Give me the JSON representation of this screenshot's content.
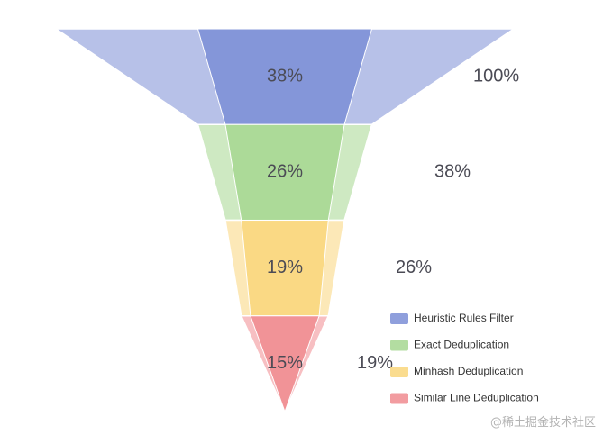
{
  "chart_data": {
    "type": "funnel",
    "categories": [
      "Heuristic Rules Filter",
      "Exact Deduplication",
      "Minhash Deduplication",
      "Similar Line Deduplication"
    ],
    "series": [
      {
        "values": [
          100,
          38,
          26,
          19
        ]
      },
      {
        "values": [
          38,
          26,
          19,
          15
        ]
      }
    ],
    "value_labels_outer": [
      "100%",
      "38%",
      "26%",
      "19%"
    ],
    "value_labels_inner": [
      "38%",
      "26%",
      "19%",
      "15%"
    ],
    "colors": [
      "#7b8ed6",
      "#a6d790",
      "#f9d67b",
      "#f08b8f"
    ],
    "legend_position": "bottom-right"
  },
  "watermark": "@稀土掘金技术社区"
}
